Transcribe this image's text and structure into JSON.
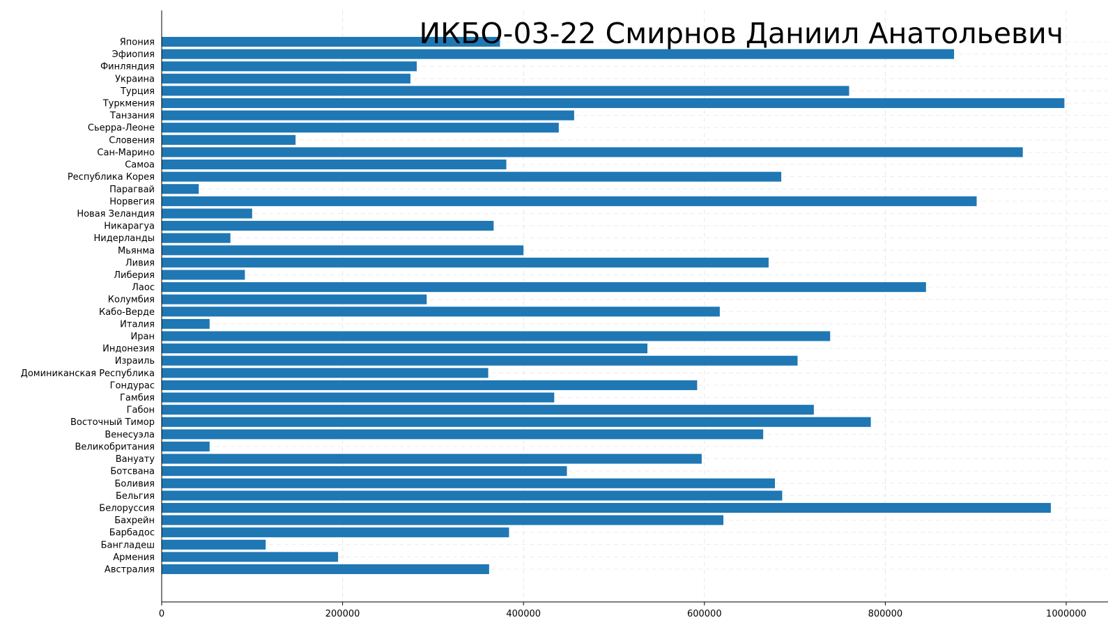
{
  "chart_data": {
    "type": "bar",
    "orientation": "horizontal",
    "title": "ИКБО-03-22 Смирнов Даниил Анатольевич",
    "xlabel": "",
    "ylabel": "",
    "xlim": [
      0,
      1050000
    ],
    "x_ticks": [
      0,
      200000,
      400000,
      600000,
      800000,
      1000000
    ],
    "grid": true,
    "bar_color": "#1f77b4",
    "categories": [
      "Австралия",
      "Армения",
      "Бангладеш",
      "Барбадос",
      "Бахрейн",
      "Белоруссия",
      "Бельгия",
      "Боливия",
      "Ботсвана",
      "Вануату",
      "Великобритания",
      "Венесуэла",
      "Восточный Тимор",
      "Габон",
      "Гамбия",
      "Гондурас",
      "Доминиканская Республика",
      "Израиль",
      "Индонезия",
      "Иран",
      "Италия",
      "Кабо-Верде",
      "Колумбия",
      "Лаос",
      "Либерия",
      "Ливия",
      "Мьянма",
      "Нидерланды",
      "Никарагуа",
      "Новая Зеландия",
      "Норвегия",
      "Парагвай",
      "Республика Корея",
      "Самоа",
      "Сан-Марино",
      "Словения",
      "Сьерра-Леоне",
      "Танзания",
      "Туркмения",
      "Турция",
      "Украина",
      "Финляндия",
      "Эфиопия",
      "Япония"
    ],
    "values": [
      362000,
      195000,
      115000,
      384000,
      621000,
      983000,
      686000,
      678000,
      448000,
      597000,
      53000,
      665000,
      784000,
      721000,
      434000,
      592000,
      361000,
      703000,
      537000,
      739000,
      53000,
      617000,
      293000,
      845000,
      92000,
      671000,
      400000,
      76000,
      367000,
      100000,
      901000,
      41000,
      685000,
      381000,
      952000,
      148000,
      439000,
      456000,
      998000,
      760000,
      275000,
      282000,
      876000,
      374000
    ]
  }
}
